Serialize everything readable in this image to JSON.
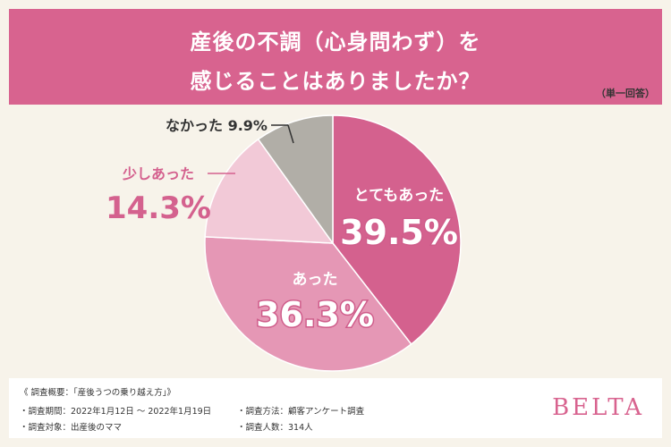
{
  "header": {
    "title_line1": "産後の不調（心身問わず）を",
    "title_line2": "感じることはありましたか？",
    "note": "（単一回答）"
  },
  "chart_data": {
    "type": "pie",
    "title": "産後の不調（心身問わず）を感じることはありましたか？",
    "slices": [
      {
        "label": "とてもあった",
        "value": 39.5,
        "value_label": "39.5%",
        "color": "#d4618e",
        "label_color": "#ffffff",
        "label_pos": "inside"
      },
      {
        "label": "あった",
        "value": 36.3,
        "value_label": "36.3%",
        "color": "#e597b5",
        "label_color": "#ffffff",
        "label_pos": "inside"
      },
      {
        "label": "少しあった",
        "value": 14.3,
        "value_label": "14.3%",
        "color": "#f2c9d7",
        "label_color": "#d4618e",
        "label_pos": "outside"
      },
      {
        "label": "なかった",
        "value": 9.9,
        "value_label": "9.9%",
        "color": "#b1aea7",
        "label_color": "#333333",
        "label_pos": "outside"
      }
    ]
  },
  "footer": {
    "survey_overview": "《 調査概要：「産後うつの乗り越え方」》",
    "period": "・調査期間：2022年1月12日 ～ 2022年1月19日",
    "target": "・調査対象：出産後のママ",
    "method": "・調査方法：顧客アンケート調査",
    "respondents": "・調査人数：314人",
    "brand": "BELTA"
  }
}
